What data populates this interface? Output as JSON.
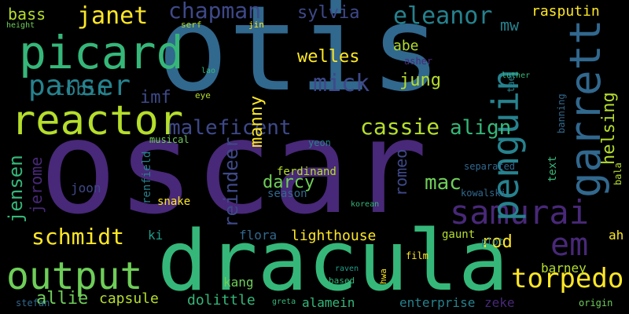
{
  "palette": {
    "background": "#000000",
    "dark_purple": "#440154",
    "purple": "#482878",
    "indigo": "#3e4989",
    "blue": "#31688e",
    "teal": "#26828e",
    "green_teal": "#1f9e89",
    "green": "#35b779",
    "light_green": "#6ece58",
    "yellow_green": "#b5de2b",
    "yellow": "#fde725"
  },
  "words": [
    "otis",
    "oscar",
    "dracula",
    "samurai",
    "penguin",
    "garrett",
    "reactor",
    "picard",
    "output",
    "parser",
    "torpedo",
    "schmidt",
    "janet",
    "chapman",
    "eleanor",
    "em",
    "maleficent",
    "cassie",
    "mick",
    "jensen",
    "jerome",
    "mac",
    "align",
    "sylvia",
    "welles",
    "tobin",
    "darcy",
    "reindeer",
    "helsing",
    "manny",
    "jung",
    "abe",
    "rod",
    "allie",
    "lighthouse",
    "dolittle",
    "mw",
    "imf",
    "bass",
    "romeo",
    "alamein",
    "capsule",
    "barney",
    "rasputin",
    "kang",
    "flora",
    "enterprise",
    "zeke",
    "ferdinand",
    "season",
    "joon",
    "renfield",
    "text",
    "ah",
    "ki",
    "bala",
    "gaunt",
    "snake",
    "plot",
    "yeon",
    "kowalski",
    "separated",
    "musical",
    "origin",
    "banning",
    "luther",
    "asher",
    "tae",
    "film",
    "based",
    "raven",
    "stefan",
    "hwa",
    "jin",
    "serf",
    "eye",
    "lao",
    "height",
    "greta",
    "korean"
  ]
}
